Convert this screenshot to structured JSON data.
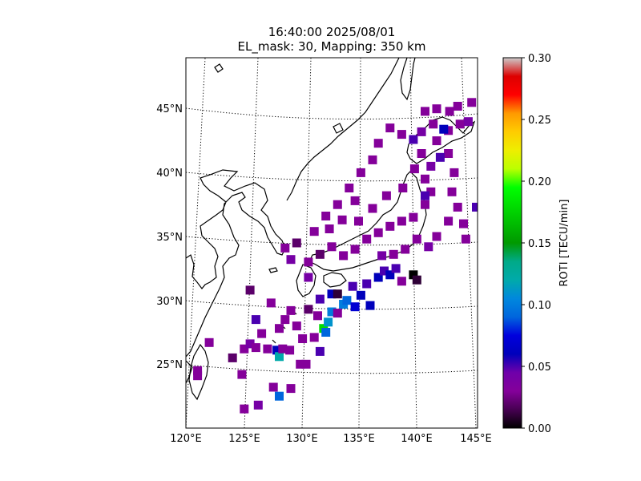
{
  "title": {
    "line1": "16:40:00 2025/08/01",
    "line2": "EL_mask: 30, Mapping: 350 km"
  },
  "map": {
    "lat_labels": [
      "25°N",
      "30°N",
      "35°N",
      "40°N",
      "45°N"
    ],
    "lon_labels": [
      "120°E",
      "125°E",
      "130°E",
      "135°E",
      "140°E",
      "145°E"
    ],
    "extent": {
      "lon": [
        120,
        145
      ],
      "lat": [
        20,
        49
      ]
    }
  },
  "colorbar": {
    "label": "ROTI [TECU/min]",
    "range": [
      0.0,
      0.3
    ],
    "ticks": [
      "0.00",
      "0.05",
      "0.10",
      "0.15",
      "0.20",
      "0.25",
      "0.30"
    ],
    "colormap": "nipy_spectral"
  },
  "chart_data": {
    "type": "heatmap",
    "title": "16:40:00 2025/08/01 — EL_mask: 30, Mapping: 350 km",
    "xlabel": "",
    "ylabel": "",
    "colorbar_label": "ROTI [TECU/min]",
    "vmin": 0.0,
    "vmax": 0.3,
    "points": [
      [
        121,
        24.1,
        0.03
      ],
      [
        121,
        24.5,
        0.03
      ],
      [
        122,
        26.7,
        0.03
      ],
      [
        124,
        25.5,
        0.02
      ],
      [
        124.8,
        24.2,
        0.03
      ],
      [
        125,
        26.2,
        0.03
      ],
      [
        125,
        21.5,
        0.03
      ],
      [
        125.5,
        26.6,
        0.04
      ],
      [
        125.5,
        30.8,
        0.02
      ],
      [
        126,
        26.3,
        0.03
      ],
      [
        126,
        28.5,
        0.05
      ],
      [
        126.2,
        21.8,
        0.04
      ],
      [
        126.5,
        27.4,
        0.03
      ],
      [
        127,
        26.2,
        0.03
      ],
      [
        127.3,
        29.8,
        0.03
      ],
      [
        127.5,
        23.2,
        0.03
      ],
      [
        127.8,
        26.1,
        0.06
      ],
      [
        128,
        22.5,
        0.09
      ],
      [
        128,
        25.6,
        0.12
      ],
      [
        128,
        27.8,
        0.03
      ],
      [
        128.3,
        26.2,
        0.03
      ],
      [
        128.5,
        28.5,
        0.03
      ],
      [
        128.5,
        34.1,
        0.03
      ],
      [
        128.9,
        26.1,
        0.03
      ],
      [
        129,
        23.1,
        0.03
      ],
      [
        129,
        29.2,
        0.03
      ],
      [
        129.5,
        28.0,
        0.03
      ],
      [
        129.5,
        34.5,
        0.02
      ],
      [
        129.8,
        25.0,
        0.03
      ],
      [
        130,
        27.0,
        0.03
      ],
      [
        130.3,
        25.0,
        0.03
      ],
      [
        130.5,
        29.3,
        0.02
      ],
      [
        130.5,
        31.8,
        0.04
      ],
      [
        131,
        27.1,
        0.03
      ],
      [
        131.3,
        28.8,
        0.03
      ],
      [
        131.5,
        26.0,
        0.05
      ],
      [
        131.5,
        30.1,
        0.05
      ],
      [
        131.8,
        27.8,
        0.18
      ],
      [
        132,
        27.5,
        0.09
      ],
      [
        132.2,
        28.3,
        0.11
      ],
      [
        132.5,
        29.1,
        0.1
      ],
      [
        132.5,
        30.5,
        0.06
      ],
      [
        133,
        29.0,
        0.03
      ],
      [
        133,
        30.5,
        0.01
      ],
      [
        133.5,
        29.7,
        0.1
      ],
      [
        133.8,
        30.0,
        0.09
      ],
      [
        134.3,
        31.1,
        0.05
      ],
      [
        134.5,
        29.5,
        0.07
      ],
      [
        135,
        30.4,
        0.06
      ],
      [
        135.5,
        31.3,
        0.05
      ],
      [
        135.8,
        29.6,
        0.06
      ],
      [
        136.5,
        31.8,
        0.06
      ],
      [
        137,
        32.3,
        0.05
      ],
      [
        137.5,
        32.0,
        0.06
      ],
      [
        138,
        32.5,
        0.05
      ],
      [
        138.5,
        31.5,
        0.03
      ],
      [
        139.5,
        32.0,
        0.0
      ],
      [
        139.8,
        31.6,
        0.01
      ],
      [
        129,
        33.2,
        0.04
      ],
      [
        130.5,
        33.0,
        0.03
      ],
      [
        131.5,
        33.6,
        0.02
      ],
      [
        132.5,
        34.2,
        0.03
      ],
      [
        133.5,
        33.5,
        0.03
      ],
      [
        134.5,
        34.0,
        0.03
      ],
      [
        135.5,
        34.8,
        0.03
      ],
      [
        136.5,
        35.3,
        0.03
      ],
      [
        137.5,
        35.8,
        0.03
      ],
      [
        138.5,
        36.2,
        0.03
      ],
      [
        139.5,
        36.5,
        0.03
      ],
      [
        140.5,
        37.5,
        0.03
      ],
      [
        141,
        38.5,
        0.03
      ],
      [
        140.5,
        39.5,
        0.03
      ],
      [
        141,
        40.5,
        0.04
      ],
      [
        140.2,
        41.5,
        0.03
      ],
      [
        141.5,
        42.5,
        0.03
      ],
      [
        142.5,
        43.3,
        0.03
      ],
      [
        143.5,
        43.8,
        0.03
      ],
      [
        144.2,
        44.0,
        0.04
      ],
      [
        139.5,
        42.6,
        0.05
      ],
      [
        138.5,
        43.0,
        0.03
      ],
      [
        137.5,
        43.5,
        0.03
      ],
      [
        136.5,
        42.3,
        0.03
      ],
      [
        136,
        41.0,
        0.03
      ],
      [
        135,
        40.0,
        0.03
      ],
      [
        134,
        38.8,
        0.03
      ],
      [
        133,
        37.5,
        0.03
      ],
      [
        132,
        36.6,
        0.03
      ],
      [
        131,
        35.4,
        0.03
      ],
      [
        132.3,
        35.6,
        0.03
      ],
      [
        133.4,
        36.3,
        0.03
      ],
      [
        134.8,
        36.2,
        0.03
      ],
      [
        136,
        37.2,
        0.03
      ],
      [
        137.2,
        38.2,
        0.03
      ],
      [
        138.6,
        38.8,
        0.03
      ],
      [
        139.6,
        40.3,
        0.03
      ],
      [
        142.5,
        41.5,
        0.03
      ],
      [
        143,
        40.0,
        0.03
      ],
      [
        142.8,
        38.5,
        0.03
      ],
      [
        143.3,
        37.3,
        0.03
      ],
      [
        143.8,
        36.0,
        0.03
      ],
      [
        144,
        34.8,
        0.03
      ],
      [
        142.5,
        36.2,
        0.03
      ],
      [
        141.5,
        35.0,
        0.03
      ],
      [
        140.8,
        34.2,
        0.04
      ],
      [
        139.8,
        34.8,
        0.03
      ],
      [
        138.8,
        34.0,
        0.03
      ],
      [
        137.8,
        33.6,
        0.03
      ],
      [
        136.8,
        33.5,
        0.04
      ],
      [
        143.3,
        45.2,
        0.03
      ],
      [
        144.5,
        45.5,
        0.03
      ],
      [
        141.5,
        45.0,
        0.03
      ],
      [
        140.5,
        44.8,
        0.03
      ],
      [
        142.6,
        44.8,
        0.03
      ],
      [
        141.2,
        43.8,
        0.03
      ],
      [
        140.2,
        43.2,
        0.04
      ],
      [
        141.8,
        41.2,
        0.05
      ],
      [
        140.5,
        38.2,
        0.05
      ],
      [
        144.9,
        37.3,
        0.05
      ],
      [
        142.1,
        43.4,
        0.06
      ],
      [
        134.5,
        37.8,
        0.03
      ]
    ]
  }
}
